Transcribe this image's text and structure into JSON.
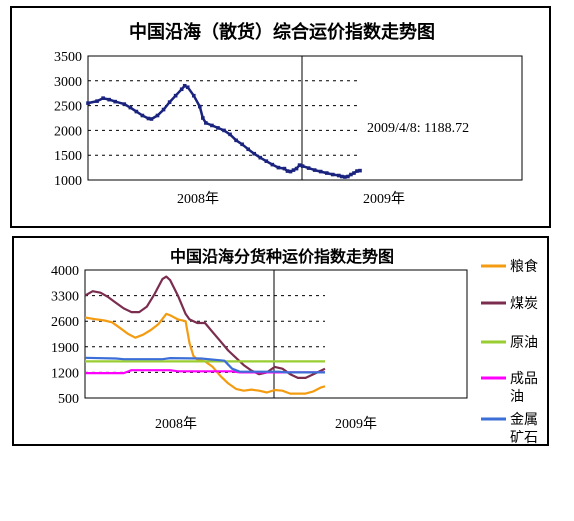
{
  "chart_data": [
    {
      "type": "line",
      "title": "中国沿海（散货）综合运价指数走势图",
      "y_ticks": [
        "3500",
        "3000",
        "2500",
        "2000",
        "1500",
        "1000"
      ],
      "ylim": [
        1000,
        3500
      ],
      "x_ticks": [
        "2008年",
        "2009年"
      ],
      "grid": "horizontal dashed",
      "annotation": "2009/4/8: 1188.72",
      "colors": {
        "line": "#1a237e",
        "marker": "#1a237e"
      },
      "series": [
        {
          "values": [
            [
              0,
              2550
            ],
            [
              3,
              2590
            ],
            [
              5,
              2650
            ],
            [
              7,
              2620
            ],
            [
              9,
              2580
            ],
            [
              12,
              2530
            ],
            [
              14,
              2460
            ],
            [
              16,
              2380
            ],
            [
              18,
              2300
            ],
            [
              20,
              2240
            ],
            [
              21,
              2230
            ],
            [
              23,
              2300
            ],
            [
              25,
              2420
            ],
            [
              27,
              2570
            ],
            [
              29,
              2700
            ],
            [
              31,
              2830
            ],
            [
              32,
              2900
            ],
            [
              33,
              2870
            ],
            [
              35,
              2700
            ],
            [
              37,
              2480
            ],
            [
              38,
              2250
            ],
            [
              39,
              2150
            ],
            [
              41,
              2100
            ],
            [
              43,
              2050
            ],
            [
              45,
              2000
            ],
            [
              47,
              1920
            ],
            [
              49,
              1800
            ],
            [
              51,
              1720
            ],
            [
              53,
              1620
            ],
            [
              55,
              1530
            ],
            [
              57,
              1450
            ],
            [
              59,
              1380
            ],
            [
              61,
              1310
            ],
            [
              63,
              1250
            ],
            [
              65,
              1230
            ],
            [
              66,
              1180
            ],
            [
              67,
              1170
            ],
            [
              68,
              1200
            ],
            [
              69,
              1230
            ],
            [
              70,
              1300
            ],
            [
              71,
              1280
            ],
            [
              73,
              1240
            ],
            [
              75,
              1200
            ],
            [
              77,
              1170
            ],
            [
              79,
              1140
            ],
            [
              81,
              1110
            ],
            [
              83,
              1090
            ],
            [
              84,
              1070
            ],
            [
              85,
              1060
            ],
            [
              86,
              1070
            ],
            [
              87,
              1110
            ],
            [
              88,
              1140
            ],
            [
              89,
              1180
            ],
            [
              90,
              1189
            ]
          ]
        }
      ]
    },
    {
      "type": "line",
      "title": "中国沿海分货种运价指数走势图",
      "y_ticks": [
        "4000",
        "3300",
        "2600",
        "1900",
        "1200",
        "500"
      ],
      "ylim": [
        500,
        4000
      ],
      "x_ticks": [
        "2008年",
        "2009年"
      ],
      "grid": "horizontal dashed",
      "series": [
        {
          "name": "粮食",
          "color": "#f39c12",
          "values": [
            [
              0,
              2700
            ],
            [
              3,
              2650
            ],
            [
              5,
              2620
            ],
            [
              7,
              2570
            ],
            [
              9,
              2420
            ],
            [
              11,
              2260
            ],
            [
              13,
              2150
            ],
            [
              15,
              2230
            ],
            [
              17,
              2360
            ],
            [
              19,
              2520
            ],
            [
              21,
              2800
            ],
            [
              22,
              2760
            ],
            [
              24,
              2650
            ],
            [
              26,
              2600
            ],
            [
              27,
              2000
            ],
            [
              28,
              1650
            ],
            [
              29,
              1550
            ],
            [
              31,
              1500
            ],
            [
              33,
              1350
            ],
            [
              35,
              1100
            ],
            [
              37,
              900
            ],
            [
              39,
              750
            ],
            [
              41,
              700
            ],
            [
              43,
              730
            ],
            [
              45,
              700
            ],
            [
              47,
              650
            ],
            [
              49,
              720
            ],
            [
              51,
              700
            ],
            [
              53,
              620
            ],
            [
              55,
              620
            ],
            [
              57,
              620
            ],
            [
              59,
              680
            ],
            [
              61,
              790
            ],
            [
              62,
              820
            ]
          ]
        },
        {
          "name": "煤炭",
          "color": "#7b2d4f",
          "values": [
            [
              0,
              3300
            ],
            [
              2,
              3420
            ],
            [
              4,
              3380
            ],
            [
              6,
              3260
            ],
            [
              8,
              3100
            ],
            [
              10,
              2950
            ],
            [
              12,
              2850
            ],
            [
              14,
              2850
            ],
            [
              16,
              3000
            ],
            [
              18,
              3350
            ],
            [
              20,
              3750
            ],
            [
              21,
              3820
            ],
            [
              22,
              3720
            ],
            [
              24,
              3300
            ],
            [
              26,
              2800
            ],
            [
              27,
              2650
            ],
            [
              29,
              2550
            ],
            [
              31,
              2550
            ],
            [
              33,
              2300
            ],
            [
              35,
              2050
            ],
            [
              37,
              1800
            ],
            [
              39,
              1600
            ],
            [
              41,
              1400
            ],
            [
              43,
              1250
            ],
            [
              45,
              1150
            ],
            [
              47,
              1200
            ],
            [
              49,
              1350
            ],
            [
              51,
              1300
            ],
            [
              53,
              1150
            ],
            [
              55,
              1050
            ],
            [
              57,
              1050
            ],
            [
              59,
              1150
            ],
            [
              61,
              1250
            ],
            [
              62,
              1300
            ]
          ]
        },
        {
          "name": "原油",
          "color": "#9acd32",
          "values": [
            [
              0,
              1500
            ],
            [
              62,
              1500
            ]
          ]
        },
        {
          "name": "成品油",
          "color": "#ff00ff",
          "values": [
            [
              0,
              1180
            ],
            [
              10,
              1180
            ],
            [
              12,
              1260
            ],
            [
              22,
              1260
            ],
            [
              24,
              1230
            ],
            [
              38,
              1230
            ],
            [
              40,
              1200
            ],
            [
              55,
              1200
            ],
            [
              57,
              1200
            ],
            [
              62,
              1200
            ]
          ]
        },
        {
          "name": "金属矿石",
          "color": "#3b6ed6",
          "values": [
            [
              0,
              1600
            ],
            [
              8,
              1580
            ],
            [
              10,
              1560
            ],
            [
              20,
              1560
            ],
            [
              22,
              1590
            ],
            [
              30,
              1580
            ],
            [
              36,
              1520
            ],
            [
              38,
              1300
            ],
            [
              40,
              1220
            ],
            [
              50,
              1220
            ],
            [
              52,
              1200
            ],
            [
              62,
              1200
            ]
          ]
        }
      ]
    }
  ]
}
